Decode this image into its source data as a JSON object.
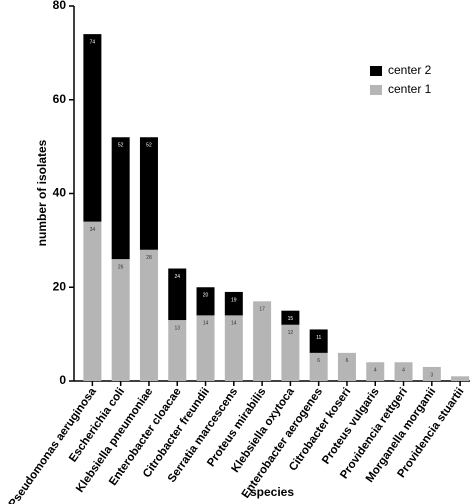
{
  "chart_data": {
    "type": "stacked_bar",
    "xlabel": "species",
    "ylabel": "number of isolates",
    "categories": [
      "Pseudomonas aeruginosa",
      "Escherichia coli",
      "Klebsiella pneumoniae",
      "Enterobacter cloacae",
      "Citrobacter freundii",
      "Serratia marcescens",
      "Proteus mirabilis",
      "Klebsiella oxytoca",
      "Enterobacter aerogenes",
      "Citrobacter koseri",
      "Proteus vulgaris",
      "Providencia rettgeri",
      "Morganella morganii",
      "Providencia stuartii"
    ],
    "series": [
      {
        "name": "center 1",
        "color": "#b5b5b5",
        "values": [
          34,
          26,
          28,
          13,
          14,
          14,
          17,
          12,
          6,
          6,
          4,
          4,
          3,
          1
        ]
      },
      {
        "name": "center 2",
        "color": "#000000",
        "values": [
          40,
          26,
          24,
          11,
          6,
          5,
          0,
          3,
          5,
          0,
          0,
          0,
          0,
          0
        ]
      }
    ],
    "total_labels": [
      74,
      52,
      52,
      24,
      20,
      19,
      null,
      15,
      11,
      null,
      null,
      null,
      null,
      null
    ],
    "ylim": [
      0,
      80
    ],
    "yticks": [
      0,
      20,
      40,
      60,
      80
    ],
    "grid": false,
    "legend": "upper right"
  }
}
